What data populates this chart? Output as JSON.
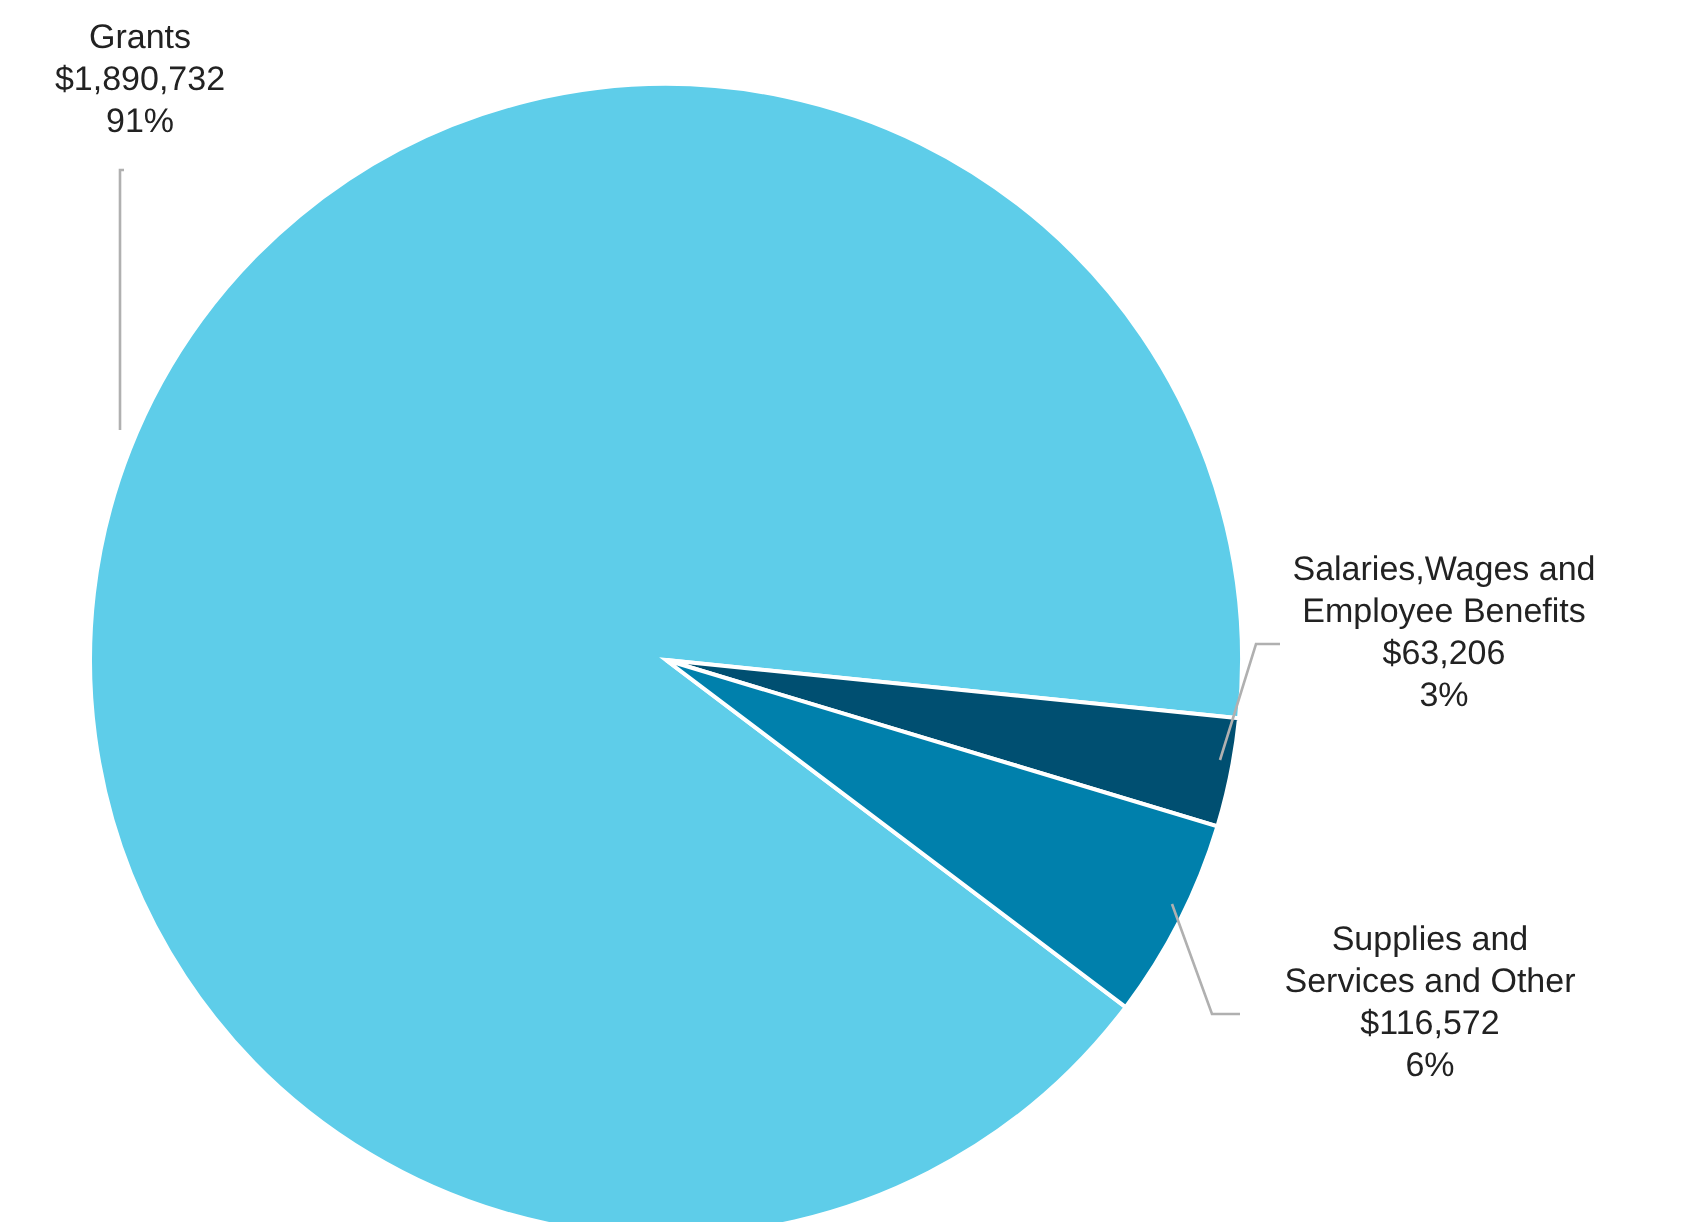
{
  "chart_data": {
    "type": "pie",
    "categories": [
      "Grants",
      "Salaries,Wages and Employee Benefits",
      "Supplies and Services and Other"
    ],
    "values": [
      1890732,
      63206,
      116572
    ],
    "colors": [
      "#5ecde9",
      "#004f71",
      "#0080ac"
    ],
    "value_labels": [
      "$1,890,732\n91%",
      "$63,206\n3%",
      "$116,572\n6%"
    ],
    "legend": false
  }
}
